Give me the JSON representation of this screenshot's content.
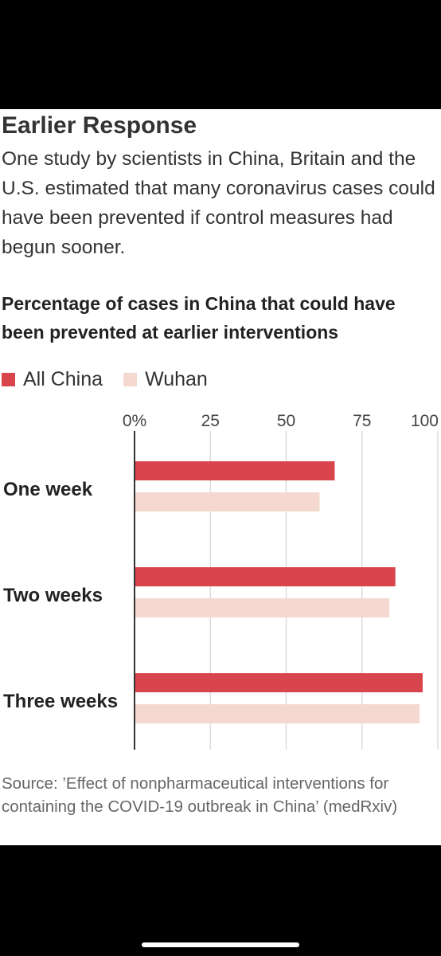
{
  "header": {
    "title": "Earlier Response",
    "subtitle": "One study by scientists in China, Britain and the U.S. estimated that many coronavirus cases could have been prevented if control measures had begun sooner."
  },
  "chart_data": {
    "type": "bar",
    "orientation": "horizontal",
    "title": "Percentage of cases in China that could have been prevented at earlier interventions",
    "categories": [
      "One week",
      "Two weeks",
      "Three weeks"
    ],
    "series": [
      {
        "name": "All China",
        "color": "#d9454c",
        "values": [
          66,
          86,
          95
        ]
      },
      {
        "name": "Wuhan",
        "color": "#f5d8cf",
        "values": [
          61,
          84,
          94
        ]
      }
    ],
    "xlim": [
      0,
      100
    ],
    "x_ticks": [
      {
        "value": 0,
        "label": "0%"
      },
      {
        "value": 25,
        "label": "25"
      },
      {
        "value": 50,
        "label": "50"
      },
      {
        "value": 75,
        "label": "75"
      },
      {
        "value": 100,
        "label": "100"
      }
    ],
    "grid": true,
    "legend_position": "top-left",
    "axis_position": "top"
  },
  "source": "Source: ’Effect of nonpharmaceutical interventions for containing the COVID-19 outbreak in China’ (medRxiv)"
}
